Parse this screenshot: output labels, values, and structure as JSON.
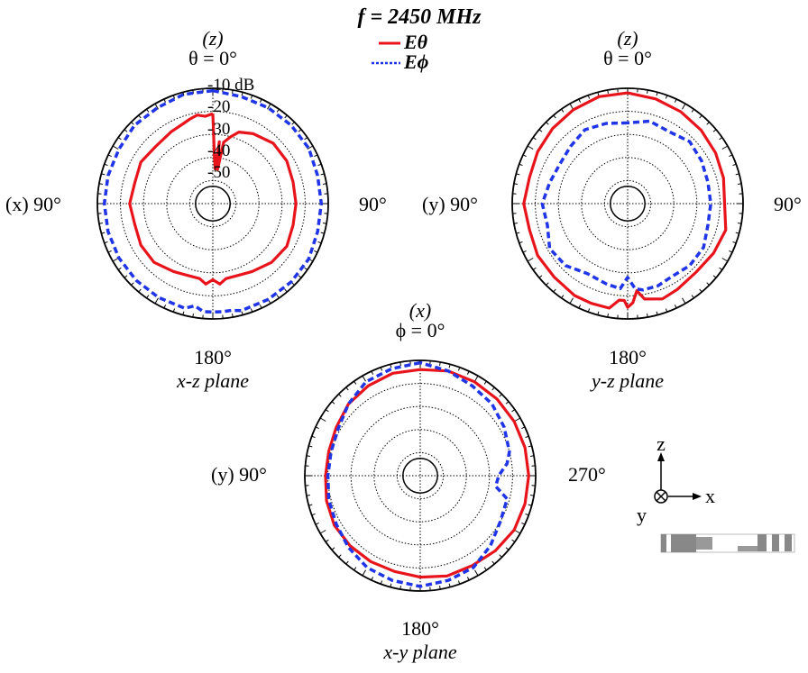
{
  "figure": {
    "frequency_label": "f = 2450 MHz",
    "legend": {
      "e_theta": {
        "label": "Eθ",
        "color": "#e8141c"
      },
      "e_phi": {
        "label": "Eϕ",
        "color": "#1f35e6"
      }
    },
    "axes_legend": {
      "z": "z",
      "x": "x",
      "y": "y"
    }
  },
  "chart_data": [
    {
      "type": "polar",
      "caption": "x-z plane",
      "angle_variable": "θ",
      "top_label_axis": "(z)",
      "top_label_angle": "θ = 0°",
      "left_label": "(x) 90°",
      "right_label": "90°",
      "bottom_label": "180°",
      "radial_unit": "dB",
      "radial_ticks": [
        "-10 dB",
        "-20",
        "-30",
        "-40",
        "-50"
      ],
      "radial_range": [
        -60,
        -10
      ],
      "grid": true,
      "series": [
        {
          "name": "Eθ",
          "color": "#e8141c",
          "style": "solid",
          "angles_deg": [
            0,
            5,
            10,
            15,
            20,
            30,
            45,
            60,
            75,
            90,
            105,
            120,
            135,
            150,
            160,
            170,
            175,
            180,
            185,
            190,
            200,
            210,
            225,
            240,
            255,
            270,
            285,
            300,
            315,
            330,
            340,
            345,
            350,
            352,
            354,
            356,
            358
          ],
          "values_db": [
            -21,
            -22,
            -21,
            -22,
            -23,
            -24,
            -25,
            -24,
            -25,
            -24,
            -25,
            -24,
            -24,
            -26,
            -27,
            -27,
            -25,
            -27,
            -25,
            -27,
            -27,
            -26,
            -24,
            -23,
            -24,
            -24,
            -24,
            -23,
            -23,
            -25,
            -27,
            -30,
            -33,
            -45,
            -33,
            -45,
            -40
          ]
        },
        {
          "name": "Eϕ",
          "color": "#1f35e6",
          "style": "dashed",
          "angles_deg": [
            0,
            15,
            30,
            45,
            60,
            75,
            90,
            105,
            120,
            135,
            150,
            165,
            170,
            175,
            180,
            185,
            190,
            195,
            210,
            225,
            240,
            255,
            270,
            285,
            300,
            315,
            330,
            345
          ],
          "values_db": [
            -11,
            -11,
            -12,
            -12,
            -13,
            -13,
            -13,
            -13,
            -13,
            -13,
            -13,
            -13,
            -15,
            -13,
            -13,
            -13,
            -13,
            -12,
            -12,
            -12,
            -12,
            -13,
            -13,
            -13,
            -12,
            -12,
            -12,
            -12
          ]
        }
      ]
    },
    {
      "type": "polar",
      "caption": "y-z plane",
      "angle_variable": "θ",
      "top_label_axis": "(z)",
      "top_label_angle": "θ = 0°",
      "left_label": "(y) 90°",
      "right_label": "90°",
      "bottom_label": "180°",
      "radial_unit": "dB",
      "radial_range": [
        -60,
        -10
      ],
      "grid": true,
      "series": [
        {
          "name": "Eθ",
          "color": "#e8141c",
          "style": "solid",
          "angles_deg": [
            0,
            15,
            30,
            45,
            60,
            75,
            90,
            105,
            120,
            135,
            150,
            160,
            170,
            175,
            178,
            180,
            183,
            186,
            190,
            200,
            210,
            225,
            240,
            255,
            270,
            285,
            300,
            315,
            330,
            345
          ],
          "values_db": [
            -12,
            -12,
            -13,
            -14,
            -15,
            -16,
            -15,
            -16,
            -15,
            -15,
            -14,
            -14,
            -14,
            -18,
            -18,
            -15,
            -17,
            -22,
            -18,
            -16,
            -17,
            -18,
            -17,
            -16,
            -18,
            -17,
            -16,
            -15,
            -14,
            -13
          ]
        },
        {
          "name": "Eϕ",
          "color": "#1f35e6",
          "style": "dashed",
          "angles_deg": [
            0,
            15,
            30,
            45,
            60,
            75,
            90,
            105,
            120,
            135,
            150,
            165,
            175,
            180,
            185,
            190,
            200,
            210,
            225,
            240,
            255,
            270,
            285,
            300,
            315,
            330,
            345
          ],
          "values_db": [
            -25,
            -24,
            -23,
            -25,
            -26,
            -25,
            -23,
            -24,
            -21,
            -22,
            -25,
            -24,
            -23,
            -28,
            -23,
            -22,
            -22,
            -23,
            -22,
            -22,
            -24,
            -24,
            -24,
            -23,
            -22,
            -24,
            -23
          ]
        }
      ]
    },
    {
      "type": "polar",
      "caption": "x-y plane",
      "angle_variable": "ϕ",
      "top_label_axis": "(x)",
      "top_label_angle": "ϕ = 0°",
      "left_label": "(y) 90°",
      "right_label": "270°",
      "bottom_label": "180°",
      "radial_unit": "dB",
      "radial_range": [
        -60,
        -10
      ],
      "grid": true,
      "series": [
        {
          "name": "Eθ",
          "color": "#e8141c",
          "style": "solid",
          "angles_deg": [
            0,
            15,
            30,
            45,
            60,
            75,
            90,
            105,
            120,
            135,
            150,
            165,
            180,
            195,
            210,
            225,
            240,
            255,
            270,
            285,
            300,
            315,
            330,
            345
          ],
          "values_db": [
            -14,
            -14,
            -15,
            -16,
            -18,
            -19,
            -19,
            -18,
            -17,
            -17,
            -17,
            -17,
            -16,
            -15,
            -15,
            -14,
            -13,
            -13,
            -13,
            -13,
            -13,
            -13,
            -13,
            -13
          ]
        },
        {
          "name": "Eϕ",
          "color": "#1f35e6",
          "style": "dashed",
          "angles_deg": [
            0,
            15,
            30,
            45,
            60,
            75,
            90,
            105,
            120,
            135,
            150,
            165,
            180,
            195,
            210,
            225,
            240,
            255,
            262,
            270,
            278,
            285,
            300,
            315,
            330,
            345
          ],
          "values_db": [
            -11,
            -12,
            -13,
            -16,
            -19,
            -20,
            -20,
            -19,
            -18,
            -16,
            -14,
            -13,
            -12,
            -13,
            -14,
            -17,
            -20,
            -21,
            -27,
            -26,
            -22,
            -20,
            -18,
            -16,
            -15,
            -13
          ]
        }
      ]
    }
  ]
}
